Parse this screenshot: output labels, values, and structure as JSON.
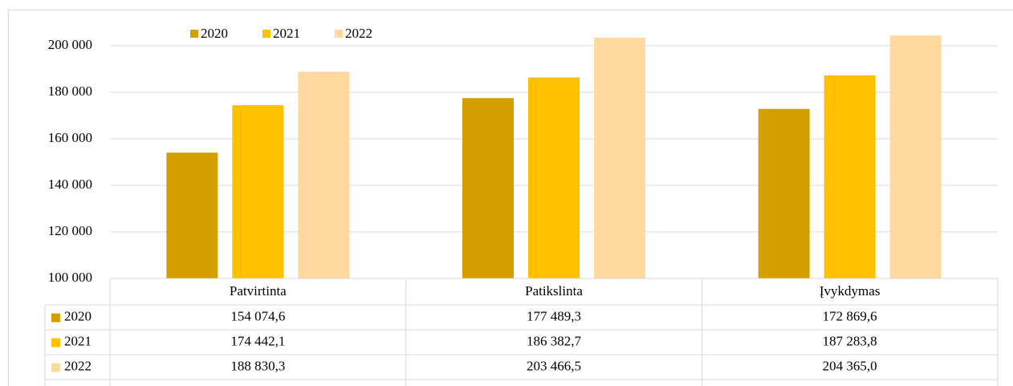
{
  "chart_data": {
    "type": "bar",
    "categories": [
      "Patvirtinta",
      "Patikslinta",
      "Įvykdymas"
    ],
    "series": [
      {
        "name": "2020",
        "color": "#d4a000",
        "values": [
          154074.6,
          177489.3,
          172869.6
        ],
        "value_labels": [
          "154 074,6",
          "177 489,3",
          "172 869,6"
        ]
      },
      {
        "name": "2021",
        "color": "#ffc000",
        "values": [
          174442.1,
          186382.7,
          187283.8
        ],
        "value_labels": [
          "174 442,1",
          "186 382,7",
          "187 283,8"
        ]
      },
      {
        "name": "2022",
        "color": "#ffd9a0",
        "values": [
          188830.3,
          203466.5,
          204365.0
        ],
        "value_labels": [
          "188 830,3",
          "203 466,5",
          "204 365,0"
        ]
      }
    ],
    "ylim": [
      100000,
      210000
    ],
    "yticks": [
      {
        "value": 100000,
        "label": "100 000"
      },
      {
        "value": 120000,
        "label": "120 000"
      },
      {
        "value": 140000,
        "label": "140 000"
      },
      {
        "value": 160000,
        "label": "160 000"
      },
      {
        "value": 180000,
        "label": "180 000"
      },
      {
        "value": 200000,
        "label": "200 000"
      }
    ],
    "grid": true,
    "legend": "top"
  }
}
